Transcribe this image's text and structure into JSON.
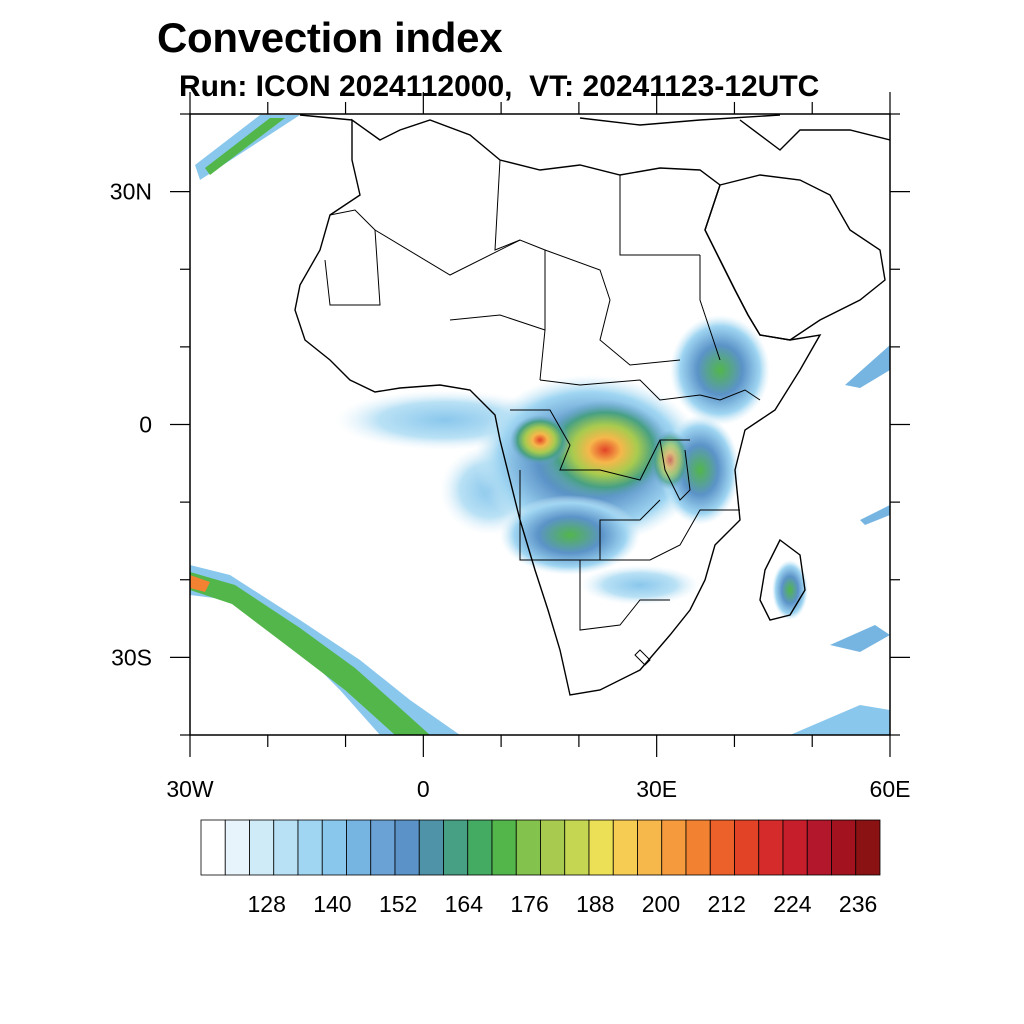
{
  "header": {
    "title": "Convection index",
    "subtitle": "Run: ICON 2024112000,  VT: 20241123-12UTC"
  },
  "map": {
    "lat_range": [
      -40,
      40
    ],
    "lon_range": [
      -30,
      60
    ],
    "lat_ticks": [
      {
        "value": 30,
        "label": "30N"
      },
      {
        "value": 0,
        "label": "0"
      },
      {
        "value": -30,
        "label": "30S"
      }
    ],
    "lon_ticks": [
      {
        "value": -30,
        "label": "30W"
      },
      {
        "value": 0,
        "label": "0"
      },
      {
        "value": 30,
        "label": "30E"
      },
      {
        "value": 60,
        "label": "60E"
      }
    ]
  },
  "colorbar": {
    "colors": [
      "#ffffff",
      "#e8f4fb",
      "#d0ebf8",
      "#b9e1f5",
      "#a0d6f2",
      "#8ac7ec",
      "#76b5e2",
      "#6aa2d6",
      "#5b93c8",
      "#4f93a8",
      "#47a083",
      "#44ab62",
      "#52b64b",
      "#84c24e",
      "#a8cb4f",
      "#c5d752",
      "#ece156",
      "#f6cc53",
      "#f6b74b",
      "#f59b3e",
      "#f28131",
      "#ec6029",
      "#e24327",
      "#d62b2b",
      "#c61e2b",
      "#b3172b",
      "#a2131f",
      "#8b1212"
    ],
    "labels": [
      {
        "value": 128,
        "label": "128"
      },
      {
        "value": 140,
        "label": "140"
      },
      {
        "value": 152,
        "label": "152"
      },
      {
        "value": 164,
        "label": "164"
      },
      {
        "value": 176,
        "label": "176"
      },
      {
        "value": 188,
        "label": "188"
      },
      {
        "value": 200,
        "label": "200"
      },
      {
        "value": 212,
        "label": "212"
      },
      {
        "value": 224,
        "label": "224"
      },
      {
        "value": 236,
        "label": "236"
      }
    ],
    "min": 116,
    "max": 240
  }
}
